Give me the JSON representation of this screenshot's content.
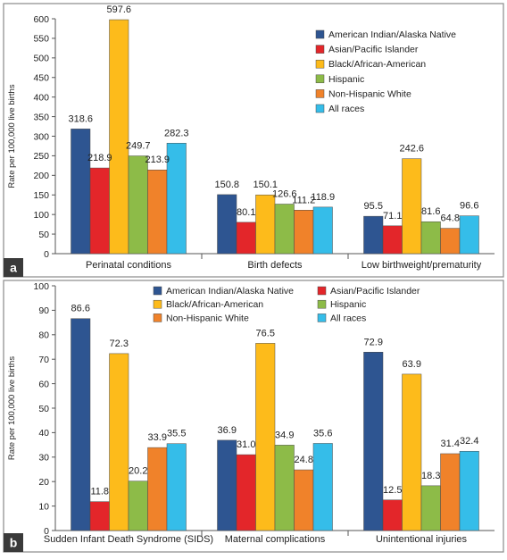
{
  "chart_data": [
    {
      "type": "bar",
      "panel_label": "a",
      "ylabel": "Rate per 100,000 live births",
      "ylim": [
        0,
        600
      ],
      "yticks": [
        0,
        50,
        100,
        150,
        200,
        250,
        300,
        350,
        400,
        450,
        500,
        550,
        600
      ],
      "categories": [
        "Perinatal conditions",
        "Birth defects",
        "Low birthweight/prematurity"
      ],
      "series": [
        {
          "name": "American Indian/Alaska Native",
          "color": "#2e5591",
          "values": [
            318.6,
            150.8,
            95.5
          ],
          "labels": [
            "318.6",
            "150.8",
            "95.5"
          ]
        },
        {
          "name": "Asian/Pacific Islander",
          "color": "#e3262a",
          "values": [
            218.9,
            80.1,
            71.1
          ],
          "labels": [
            "218.9",
            "80.1",
            "71.1"
          ]
        },
        {
          "name": "Black/African-American",
          "color": "#fdbb1b",
          "values": [
            597.6,
            150.1,
            242.6
          ],
          "labels": [
            "597.6",
            "150.1",
            "242.6"
          ]
        },
        {
          "name": "Hispanic",
          "color": "#8dbb48",
          "values": [
            249.7,
            126.6,
            81.6
          ],
          "labels": [
            "249.7",
            "126.6",
            "81.6"
          ]
        },
        {
          "name": "Non-Hispanic White",
          "color": "#f0822a",
          "values": [
            213.9,
            111.2,
            64.8
          ],
          "labels": [
            "213.9",
            "111.2",
            "64.8"
          ]
        },
        {
          "name": "All races",
          "color": "#35bde9",
          "values": [
            282.3,
            118.9,
            96.6
          ],
          "labels": [
            "282.3",
            "118.9",
            "96.6"
          ]
        }
      ],
      "legend": "top-right, single column"
    },
    {
      "type": "bar",
      "panel_label": "b",
      "ylabel": "Rate per 100,000 live births",
      "ylim": [
        0,
        100
      ],
      "yticks": [
        0,
        10,
        20,
        30,
        40,
        50,
        60,
        70,
        80,
        90,
        100
      ],
      "categories": [
        "Sudden Infant Death Syndrome (SIDS)",
        "Maternal complications",
        "Unintentional injuries"
      ],
      "series": [
        {
          "name": "American Indian/Alaska Native",
          "color": "#2e5591",
          "values": [
            86.6,
            36.9,
            72.9
          ],
          "labels": [
            "86.6",
            "36.9",
            "72.9"
          ]
        },
        {
          "name": "Asian/Pacific Islander",
          "color": "#e3262a",
          "values": [
            11.8,
            31.0,
            12.5
          ],
          "labels": [
            "11.8",
            "31.0",
            "12.5"
          ]
        },
        {
          "name": "Black/African-American",
          "color": "#fdbb1b",
          "values": [
            72.3,
            76.5,
            63.9
          ],
          "labels": [
            "72.3",
            "76.5",
            "63.9"
          ]
        },
        {
          "name": "Hispanic",
          "color": "#8dbb48",
          "values": [
            20.2,
            34.9,
            18.3
          ],
          "labels": [
            "20.2",
            "34.9",
            "18.3"
          ]
        },
        {
          "name": "Non-Hispanic White",
          "color": "#f0822a",
          "values": [
            33.9,
            24.8,
            31.4
          ],
          "labels": [
            "33.9",
            "24.8",
            "31.4"
          ]
        },
        {
          "name": "All races",
          "color": "#35bde9",
          "values": [
            35.5,
            35.6,
            32.4
          ],
          "labels": [
            "35.5",
            "35.6",
            "32.4"
          ]
        }
      ],
      "legend": "top, two columns"
    }
  ]
}
